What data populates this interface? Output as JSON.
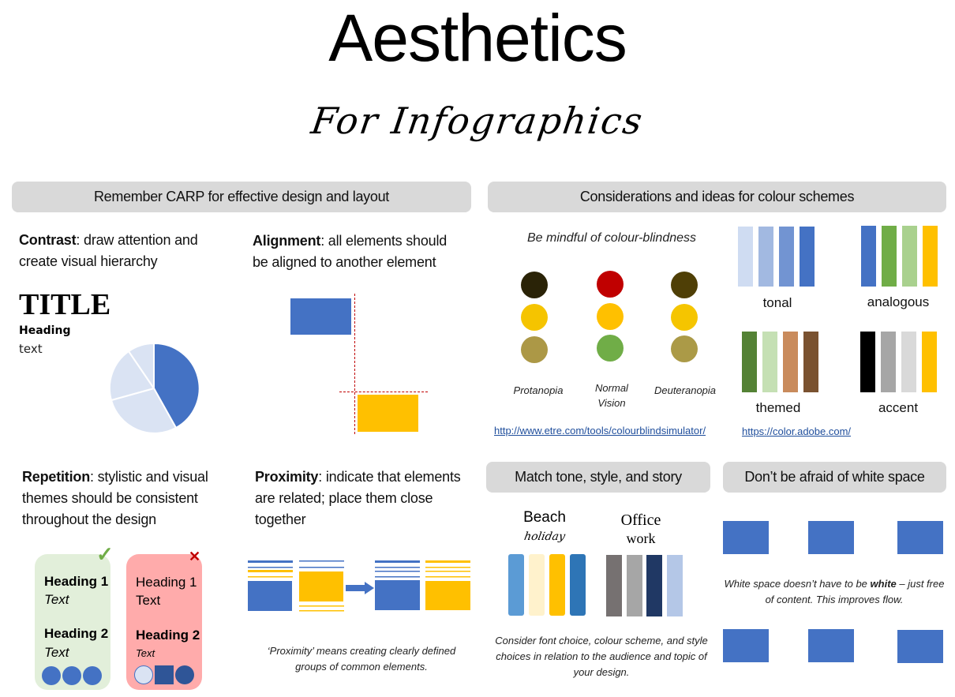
{
  "header": {
    "title": "Aesthetics",
    "subtitle": "For Infographics"
  },
  "carp": {
    "banner": "Remember CARP  for effective design and layout",
    "contrast": {
      "term": "Contrast",
      "desc": ": draw attention and create visual hierarchy",
      "sample_title": "TITLE",
      "sample_heading": "Heading",
      "sample_text": "text",
      "pie_colors": [
        "#4472c4",
        "#dae3f3",
        "#dae3f3",
        "#dae3f3"
      ]
    },
    "alignment": {
      "term": "Alignment",
      "desc": ": all elements should be aligned to another element",
      "box_colors": [
        "#4472c4",
        "#ffc000"
      ],
      "guide_color": "#c00000"
    },
    "repetition": {
      "term": "Repetition",
      "desc": ": stylistic and visual themes should be consistent throughout the design",
      "good_card": {
        "mark": "✓",
        "heading1": "Heading 1",
        "text1": "Text",
        "heading2": "Heading 2",
        "text2": "Text",
        "bg": "#e2efda"
      },
      "bad_card": {
        "mark": "✕",
        "heading1": "Heading 1",
        "text1": "Text",
        "heading2": "Heading 2",
        "text2": "Text",
        "bg": "#ffabab"
      }
    },
    "proximity": {
      "term": "Proximity",
      "desc": ": indicate that elements are related; place them close together",
      "caption": "‘Proximity’ means creating clearly defined groups of common elements."
    }
  },
  "colour": {
    "banner": "Considerations and ideas for colour schemes",
    "colour_blind": {
      "heading": "Be mindful of colour-blindness",
      "columns": [
        {
          "label": "Protanopia",
          "colors": [
            "#2a2307",
            "#f5c400",
            "#ac9846"
          ]
        },
        {
          "label": "Normal Vision",
          "colors": [
            "#c00000",
            "#ffc000",
            "#70ad47"
          ]
        },
        {
          "label": "Deuteranopia",
          "colors": [
            "#4f3f06",
            "#f5c500",
            "#ab9a47"
          ]
        }
      ],
      "link": "http://www.etre.com/tools/colourblindsimulator/"
    },
    "schemes": [
      {
        "label": "tonal",
        "colors": [
          "#cfdcf2",
          "#a2b9e1",
          "#7294d2",
          "#4472c4"
        ]
      },
      {
        "label": "analogous",
        "colors": [
          "#4472c4",
          "#70ad47",
          "#a9d18e",
          "#ffc000"
        ]
      },
      {
        "label": "themed",
        "colors": [
          "#548235",
          "#c5e0b4",
          "#c98b5c",
          "#7a5230"
        ]
      },
      {
        "label": "accent",
        "colors": [
          "#000000",
          "#a6a6a6",
          "#d9d9d9",
          "#ffc000"
        ]
      }
    ],
    "link": "https://color.adobe.com/"
  },
  "tone": {
    "banner": "Match tone, style, and story",
    "beach": {
      "title": "Beach",
      "subtitle": "holiday",
      "colors": [
        "#5b9bd5",
        "#fff2cc",
        "#ffc000",
        "#2e75b6"
      ]
    },
    "office": {
      "title": "Office",
      "subtitle": "work",
      "colors": [
        "#767171",
        "#a6a6a6",
        "#203864",
        "#b4c7e7"
      ]
    },
    "caption": "Consider font choice, colour scheme, and style choices in relation to the audience and topic of your design."
  },
  "whitespace": {
    "banner": "Don’t be afraid of white space",
    "caption_pre": "White space doesn’t have to be ",
    "caption_bold": "white",
    "caption_post": " – just free of content. This improves flow.",
    "box_color": "#4472c4"
  }
}
